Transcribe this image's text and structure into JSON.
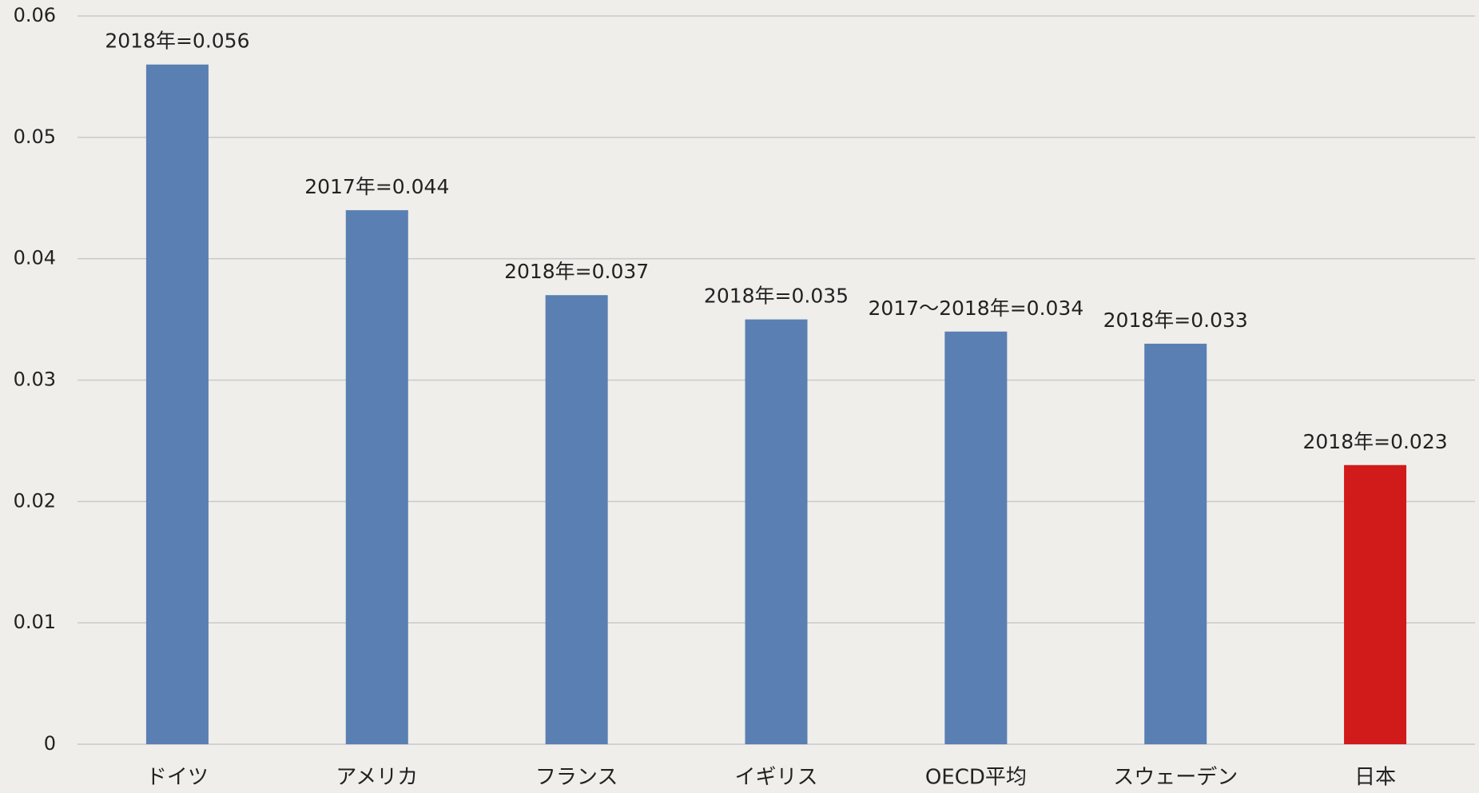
{
  "chart_data": {
    "type": "bar",
    "categories": [
      "ドイツ",
      "アメリカ",
      "フランス",
      "イギリス",
      "OECD平均",
      "スウェーデン",
      "日本"
    ],
    "values": [
      0.056,
      0.044,
      0.037,
      0.035,
      0.034,
      0.033,
      0.023
    ],
    "value_labels": [
      "2018年=0.056",
      "2017年=0.044",
      "2018年=0.037",
      "2018年=0.035",
      "2017～2018年=0.034",
      "2018年=0.033",
      "2018年=0.023"
    ],
    "colors": [
      "#5a7fb2",
      "#5a7fb2",
      "#5a7fb2",
      "#5a7fb2",
      "#5a7fb2",
      "#5a7fb2",
      "#d11a1a"
    ],
    "ylim": [
      0,
      0.06
    ],
    "yticks": [
      0,
      0.01,
      0.02,
      0.03,
      0.04,
      0.05,
      0.06
    ],
    "grid": true
  }
}
